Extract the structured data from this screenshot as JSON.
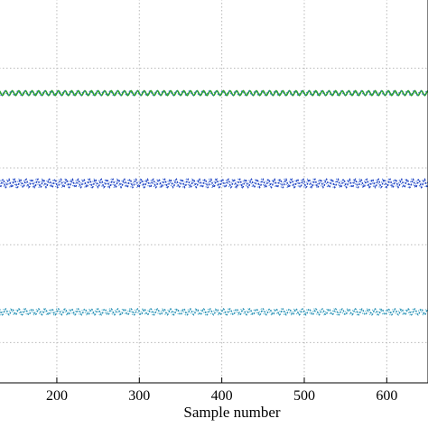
{
  "chart_data": {
    "type": "line",
    "title": "",
    "xlabel": "Sample number",
    "ylabel": "",
    "xlim": [
      130,
      650
    ],
    "ylim": [
      0,
      1
    ],
    "x_ticks": [
      200,
      300,
      400,
      500,
      600
    ],
    "grid": true,
    "series": [
      {
        "level": 0.755,
        "amplitude": 0.006,
        "period": 8,
        "color": "#2ca02c",
        "accent": "#3d6fd6",
        "style": "solid"
      },
      {
        "level": 0.52,
        "amplitude": 0.011,
        "period": 7,
        "color": "#1f3fbf",
        "accent": "#4a7be0",
        "style": "dotted"
      },
      {
        "level": 0.185,
        "amplitude": 0.008,
        "period": 8,
        "color": "#2a8fb5",
        "accent": "#4fb3c9",
        "style": "dotted"
      }
    ]
  }
}
